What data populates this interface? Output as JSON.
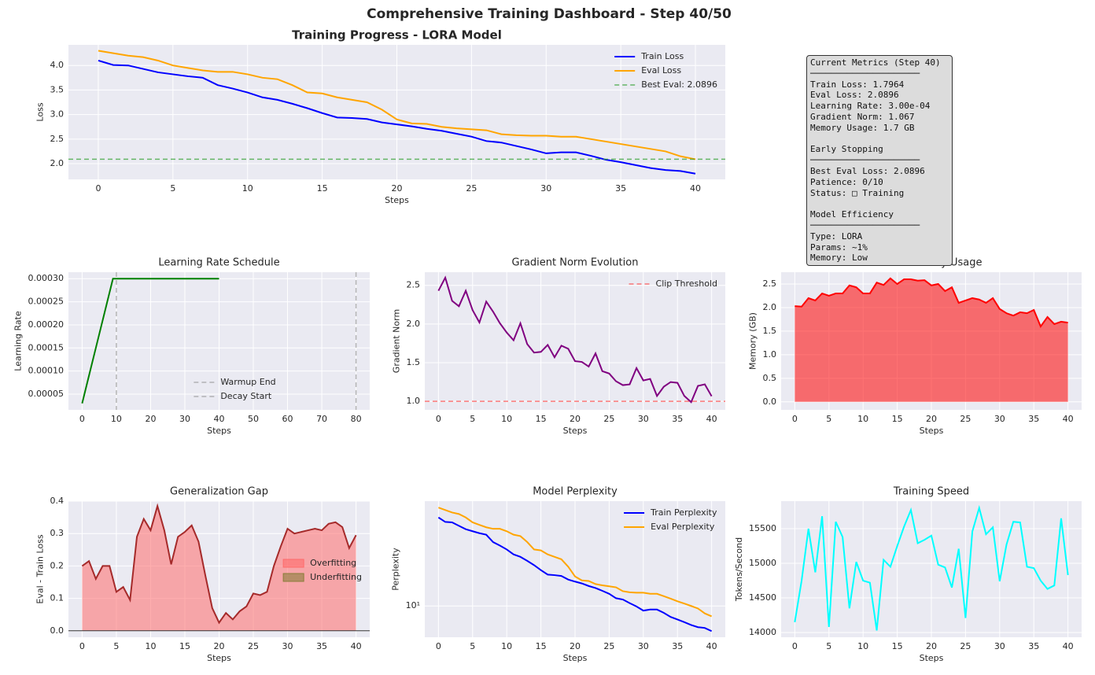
{
  "title": "Comprehensive Training Dashboard - Step 40/50",
  "metrics_box": {
    "sections": [
      {
        "heading": "Current Metrics (Step 40)",
        "rule": "─────────────────────",
        "lines": [
          "Train Loss: 1.7964",
          "Eval Loss: 2.0896",
          "Learning Rate: 3.00e-04",
          "Gradient Norm: 1.067",
          "Memory Usage: 1.7 GB"
        ]
      },
      {
        "heading": "Early Stopping",
        "rule": "─────────────────────",
        "lines": [
          "Best Eval Loss: 2.0896",
          "Patience: 0/10",
          "Status: □ Training"
        ]
      },
      {
        "heading": "Model Efficiency",
        "rule": "─────────────────────",
        "lines": [
          "Type: LORA",
          "Params: ~1%",
          "Memory: Low"
        ]
      }
    ]
  },
  "chart_data": [
    {
      "type": "line",
      "title": "Training Progress - LORA Model",
      "xlabel": "Steps",
      "ylabel": "Loss",
      "grid": true,
      "legend": "upper right",
      "x": [
        0,
        1,
        2,
        3,
        4,
        5,
        6,
        7,
        8,
        9,
        10,
        11,
        12,
        13,
        14,
        15,
        16,
        17,
        18,
        19,
        20,
        21,
        22,
        23,
        24,
        25,
        26,
        27,
        28,
        29,
        30,
        31,
        32,
        33,
        34,
        35,
        36,
        37,
        38,
        39,
        40
      ],
      "series": [
        {
          "name": "Train Loss",
          "color": "#0000ff",
          "values": [
            4.1,
            4.01,
            4.0,
            3.93,
            3.86,
            3.82,
            3.78,
            3.75,
            3.6,
            3.53,
            3.45,
            3.35,
            3.3,
            3.22,
            3.13,
            3.03,
            2.94,
            2.93,
            2.91,
            2.84,
            2.8,
            2.76,
            2.71,
            2.67,
            2.61,
            2.55,
            2.46,
            2.43,
            2.36,
            2.29,
            2.21,
            2.23,
            2.23,
            2.16,
            2.08,
            2.03,
            1.97,
            1.91,
            1.87,
            1.85,
            1.7964
          ]
        },
        {
          "name": "Eval Loss",
          "color": "#ffa500",
          "values": [
            4.3,
            4.25,
            4.2,
            4.17,
            4.1,
            4.0,
            3.95,
            3.9,
            3.87,
            3.87,
            3.82,
            3.75,
            3.72,
            3.6,
            3.45,
            3.43,
            3.35,
            3.3,
            3.25,
            3.1,
            2.9,
            2.82,
            2.81,
            2.75,
            2.72,
            2.7,
            2.68,
            2.6,
            2.58,
            2.57,
            2.57,
            2.55,
            2.55,
            2.5,
            2.45,
            2.4,
            2.35,
            2.3,
            2.25,
            2.15,
            2.0896
          ]
        }
      ],
      "hlines": [
        {
          "name": "Best Eval: 2.0896",
          "value": 2.0896,
          "color": "#2ca02c"
        }
      ],
      "xlim": [
        -2,
        42
      ],
      "xticks": [
        0,
        5,
        10,
        15,
        20,
        25,
        30,
        35,
        40
      ],
      "ylim": [
        1.68,
        4.42
      ],
      "yticks": [
        {
          "value": 2.0,
          "label": "2.0"
        },
        2.5,
        {
          "value": 3.0,
          "label": "3.0"
        },
        3.5,
        {
          "value": 4.0,
          "label": "4.0"
        }
      ]
    },
    {
      "type": "line",
      "title": "Learning Rate Schedule",
      "xlabel": "Steps",
      "ylabel": "Learning Rate",
      "grid": true,
      "legend": "lower center",
      "x": [
        0,
        1,
        2,
        3,
        4,
        5,
        6,
        7,
        8,
        9,
        10,
        11,
        12,
        13,
        14,
        15,
        16,
        17,
        18,
        19,
        20,
        21,
        22,
        23,
        24,
        25,
        26,
        27,
        28,
        29,
        30,
        31,
        32,
        33,
        34,
        35,
        36,
        37,
        38,
        39,
        40
      ],
      "series": [
        {
          "color": "#008000",
          "values": [
            3e-05,
            6e-05,
            9e-05,
            0.00012,
            0.00015,
            0.00018,
            0.00021,
            0.00024,
            0.00027,
            0.0003,
            0.0003,
            0.0003,
            0.0003,
            0.0003,
            0.0003,
            0.0003,
            0.0003,
            0.0003,
            0.0003,
            0.0003,
            0.0003,
            0.0003,
            0.0003,
            0.0003,
            0.0003,
            0.0003,
            0.0003,
            0.0003,
            0.0003,
            0.0003,
            0.0003,
            0.0003,
            0.0003,
            0.0003,
            0.0003,
            0.0003,
            0.0003,
            0.0003,
            0.0003,
            0.0003,
            0.0003
          ]
        }
      ],
      "vlines": [
        {
          "name": "Warmup End",
          "value": 10,
          "color": "#999999"
        },
        {
          "name": "Decay Start",
          "value": 80,
          "color": "#999999"
        }
      ],
      "xlim": [
        -4,
        84
      ],
      "xticks": [
        0,
        10,
        20,
        30,
        40,
        50,
        60,
        70,
        80
      ],
      "ylim": [
        1.6e-05,
        0.000314
      ],
      "yticks": [
        {
          "value": 5e-05,
          "label": "0.00005"
        },
        {
          "value": 0.0001,
          "label": "0.00010"
        },
        {
          "value": 0.00015,
          "label": "0.00015"
        },
        {
          "value": 0.0002,
          "label": "0.00020"
        },
        {
          "value": 0.00025,
          "label": "0.00025"
        },
        {
          "value": 0.0003,
          "label": "0.00030"
        }
      ]
    },
    {
      "type": "line",
      "title": "Gradient Norm Evolution",
      "xlabel": "Steps",
      "ylabel": "Gradient Norm",
      "grid": true,
      "legend": "upper right",
      "x": [
        0,
        1,
        2,
        3,
        4,
        5,
        6,
        7,
        8,
        9,
        10,
        11,
        12,
        13,
        14,
        15,
        16,
        17,
        18,
        19,
        20,
        21,
        22,
        23,
        24,
        25,
        26,
        27,
        28,
        29,
        30,
        31,
        32,
        33,
        34,
        35,
        36,
        37,
        38,
        39,
        40
      ],
      "series": [
        {
          "color": "#800080",
          "values": [
            2.43,
            2.6,
            2.3,
            2.23,
            2.43,
            2.18,
            2.02,
            2.29,
            2.16,
            2.01,
            1.89,
            1.79,
            2.01,
            1.74,
            1.63,
            1.64,
            1.73,
            1.57,
            1.72,
            1.68,
            1.52,
            1.51,
            1.45,
            1.62,
            1.39,
            1.36,
            1.26,
            1.21,
            1.22,
            1.43,
            1.27,
            1.29,
            1.07,
            1.19,
            1.25,
            1.24,
            1.07,
            0.99,
            1.2,
            1.22,
            1.067
          ]
        }
      ],
      "hlines": [
        {
          "name": "Clip Threshold",
          "value": 1.0,
          "color": "#ff4444"
        }
      ],
      "xlim": [
        -2,
        42
      ],
      "xticks": [
        0,
        5,
        10,
        15,
        20,
        25,
        30,
        35,
        40
      ],
      "ylim": [
        0.89,
        2.67
      ],
      "yticks": [
        {
          "value": 1.0,
          "label": "1.0"
        },
        1.5,
        {
          "value": 2.0,
          "label": "2.0"
        },
        2.5
      ]
    },
    {
      "type": "area",
      "title": "GPU Memory Usage",
      "xlabel": "Steps",
      "ylabel": "Memory (GB)",
      "grid": true,
      "x": [
        0,
        1,
        2,
        3,
        4,
        5,
        6,
        7,
        8,
        9,
        10,
        11,
        12,
        13,
        14,
        15,
        16,
        17,
        18,
        19,
        20,
        21,
        22,
        23,
        24,
        25,
        26,
        27,
        28,
        29,
        30,
        31,
        32,
        33,
        34,
        35,
        36,
        37,
        38,
        39,
        40
      ],
      "series": [
        {
          "color": "#ff0000",
          "values": [
            2.03,
            2.02,
            2.2,
            2.15,
            2.3,
            2.25,
            2.3,
            2.3,
            2.47,
            2.43,
            2.3,
            2.3,
            2.53,
            2.48,
            2.62,
            2.5,
            2.6,
            2.6,
            2.57,
            2.58,
            2.47,
            2.5,
            2.35,
            2.43,
            2.1,
            2.15,
            2.2,
            2.17,
            2.1,
            2.2,
            1.97,
            1.88,
            1.83,
            1.9,
            1.88,
            1.95,
            1.6,
            1.8,
            1.65,
            1.7,
            1.68
          ]
        }
      ],
      "xlim": [
        -2,
        42
      ],
      "xticks": [
        0,
        5,
        10,
        15,
        20,
        25,
        30,
        35,
        40
      ],
      "ylim": [
        -0.17,
        2.75
      ],
      "yticks": [
        {
          "value": 0.0,
          "label": "0.0"
        },
        0.5,
        {
          "value": 1.0,
          "label": "1.0"
        },
        1.5,
        {
          "value": 2.0,
          "label": "2.0"
        },
        2.5
      ]
    },
    {
      "type": "area",
      "title": "Generalization Gap",
      "xlabel": "Steps",
      "ylabel": "Eval - Train Loss",
      "grid": true,
      "legend": "center right",
      "x": [
        0,
        1,
        2,
        3,
        4,
        5,
        6,
        7,
        8,
        9,
        10,
        11,
        12,
        13,
        14,
        15,
        16,
        17,
        18,
        19,
        20,
        21,
        22,
        23,
        24,
        25,
        26,
        27,
        28,
        29,
        30,
        31,
        32,
        33,
        34,
        35,
        36,
        37,
        38,
        39,
        40
      ],
      "series": [
        {
          "color": "#a52a2a",
          "values": [
            0.2,
            0.215,
            0.16,
            0.2,
            0.2,
            0.12,
            0.135,
            0.095,
            0.29,
            0.345,
            0.31,
            0.385,
            0.31,
            0.205,
            0.29,
            0.305,
            0.325,
            0.275,
            0.17,
            0.07,
            0.025,
            0.055,
            0.035,
            0.06,
            0.075,
            0.115,
            0.11,
            0.12,
            0.2,
            0.26,
            0.315,
            0.3,
            0.305,
            0.31,
            0.315,
            0.31,
            0.33,
            0.335,
            0.32,
            0.255,
            0.295
          ]
        }
      ],
      "fill_legend": [
        {
          "name": "Overfitting",
          "color": "#ff6b6b"
        },
        {
          "name": "Underfitting",
          "color": "#8b7d3a"
        }
      ],
      "xlim": [
        -2,
        42
      ],
      "xticks": [
        0,
        5,
        10,
        15,
        20,
        25,
        30,
        35,
        40
      ],
      "ylim": [
        -0.02,
        0.4
      ],
      "yticks": [
        {
          "value": 0.0,
          "label": "0.0"
        },
        0.1,
        0.2,
        0.3,
        0.4
      ]
    },
    {
      "type": "line",
      "title": "Model Perplexity",
      "xlabel": "Steps",
      "ylabel": "Perplexity",
      "grid": true,
      "legend": "upper right",
      "log_y": true,
      "x": [
        0,
        1,
        2,
        3,
        4,
        5,
        6,
        7,
        8,
        9,
        10,
        11,
        12,
        13,
        14,
        15,
        16,
        17,
        18,
        19,
        20,
        21,
        22,
        23,
        24,
        25,
        26,
        27,
        28,
        29,
        30,
        31,
        32,
        33,
        34,
        35,
        36,
        37,
        38,
        39,
        40
      ],
      "series": [
        {
          "name": "Train Perplexity",
          "color": "#0000ff",
          "values": [
            60.3,
            55.1,
            54.6,
            50.9,
            47.5,
            45.6,
            43.8,
            42.5,
            36.6,
            34.1,
            31.5,
            28.5,
            27.1,
            25.0,
            22.9,
            20.7,
            18.9,
            18.7,
            18.4,
            17.1,
            16.4,
            15.8,
            15.0,
            14.4,
            13.6,
            12.8,
            11.7,
            11.4,
            10.6,
            9.9,
            9.1,
            9.3,
            9.3,
            8.7,
            8.0,
            7.6,
            7.2,
            6.8,
            6.5,
            6.4,
            6.0
          ]
        },
        {
          "name": "Eval Perplexity",
          "color": "#ffa500",
          "values": [
            73.7,
            70.1,
            66.7,
            64.7,
            60.3,
            54.6,
            51.9,
            49.4,
            47.9,
            47.9,
            45.6,
            42.5,
            41.3,
            36.6,
            31.5,
            30.9,
            28.5,
            27.1,
            25.8,
            22.2,
            18.2,
            16.8,
            16.6,
            15.6,
            15.2,
            14.9,
            14.6,
            13.5,
            13.2,
            13.1,
            13.1,
            12.8,
            12.8,
            12.2,
            11.6,
            11.0,
            10.5,
            10.0,
            9.5,
            8.6,
            8.1
          ]
        }
      ],
      "xlim": [
        -2,
        42
      ],
      "xticks": [
        0,
        5,
        10,
        15,
        20,
        25,
        30,
        35,
        40
      ],
      "ylim": [
        5.3,
        84
      ],
      "yticks": [
        {
          "value": 10,
          "label": "10¹"
        }
      ]
    },
    {
      "type": "line",
      "title": "Training Speed",
      "xlabel": "Steps",
      "ylabel": "Tokens/Second",
      "grid": true,
      "x": [
        0,
        1,
        2,
        3,
        4,
        5,
        6,
        7,
        8,
        9,
        10,
        11,
        12,
        13,
        14,
        15,
        16,
        17,
        18,
        19,
        20,
        21,
        22,
        23,
        24,
        25,
        26,
        27,
        28,
        29,
        30,
        31,
        32,
        33,
        34,
        35,
        36,
        37,
        38,
        39,
        40
      ],
      "series": [
        {
          "color": "#00ffff",
          "values": [
            14150,
            14750,
            15500,
            14870,
            15680,
            14080,
            15600,
            15380,
            14350,
            15020,
            14750,
            14720,
            14030,
            15050,
            14950,
            15250,
            15530,
            15770,
            15290,
            15340,
            15400,
            14980,
            14940,
            14650,
            15210,
            14210,
            15460,
            15800,
            15420,
            15520,
            14740,
            15270,
            15600,
            15590,
            14950,
            14930,
            14750,
            14630,
            14680,
            15650,
            14830
          ]
        }
      ],
      "xlim": [
        -2,
        42
      ],
      "xticks": [
        0,
        5,
        10,
        15,
        20,
        25,
        30,
        35,
        40
      ],
      "ylim": [
        13932,
        15898
      ],
      "yticks": [
        14000,
        14500,
        15000,
        15500
      ]
    }
  ]
}
